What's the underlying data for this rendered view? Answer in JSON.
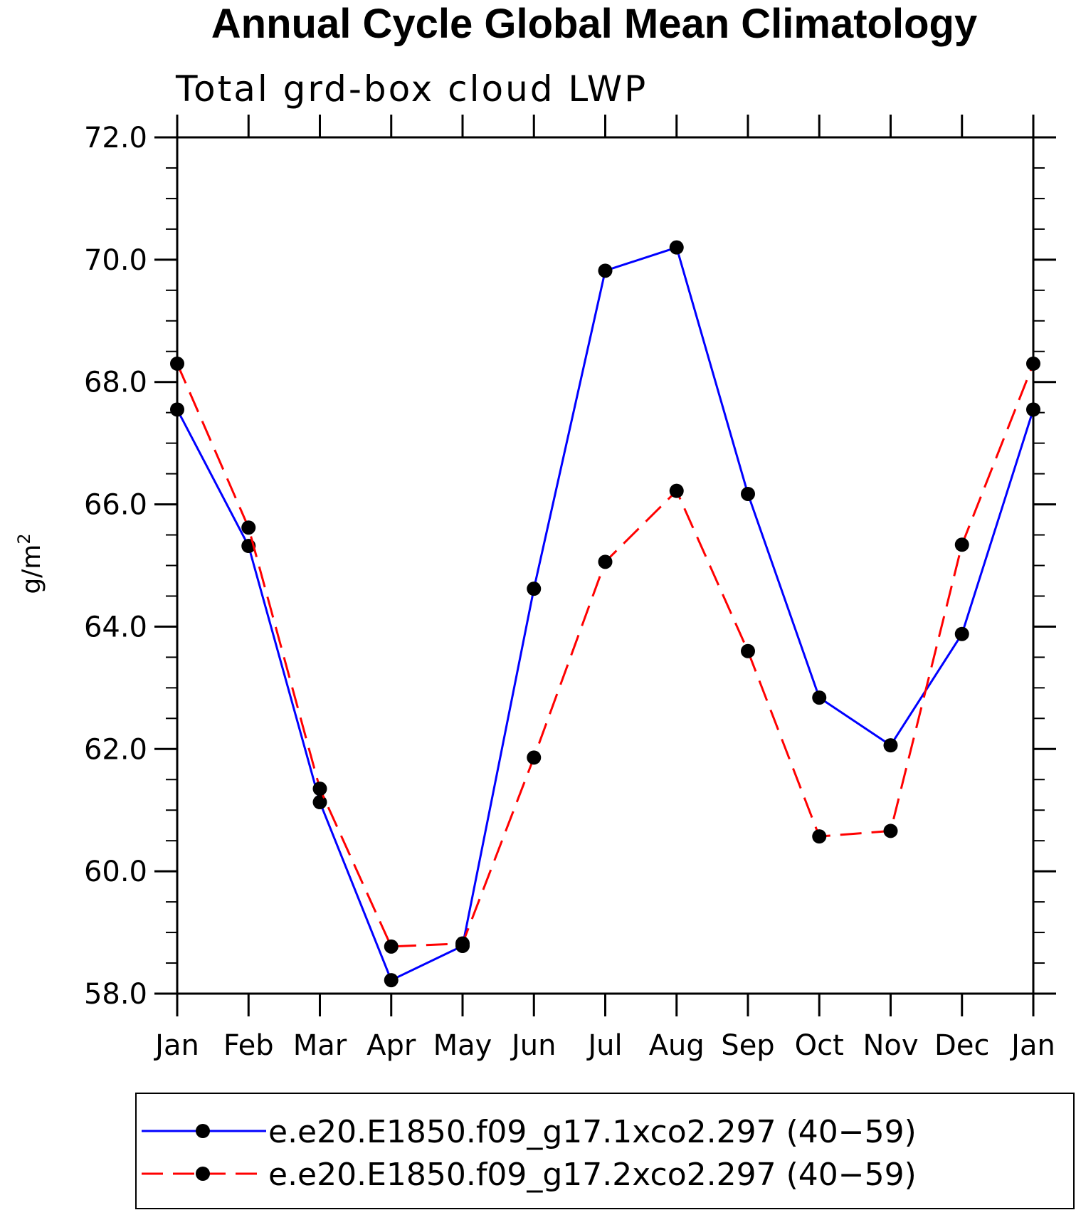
{
  "chart_data": {
    "type": "line",
    "title": "Annual Cycle Global Mean Climatology",
    "subtitle": "Total grd-box cloud LWP",
    "ylabel_base": "g/m",
    "ylabel_sup": "2",
    "xlabel": "",
    "categories": [
      "Jan",
      "Feb",
      "Mar",
      "Apr",
      "May",
      "Jun",
      "Jul",
      "Aug",
      "Sep",
      "Oct",
      "Nov",
      "Dec",
      "Jan"
    ],
    "ylim": [
      58.0,
      72.0
    ],
    "yticks": [
      "58.0",
      "60.0",
      "62.0",
      "64.0",
      "66.0",
      "68.0",
      "70.0",
      "72.0"
    ],
    "grid": false,
    "legend_position": "bottom",
    "series": [
      {
        "name": "e.e20.E1850.f09_g17.1xco2.297 (40−59)",
        "color": "#0000ff",
        "dash": "solid",
        "values": [
          67.55,
          65.32,
          61.13,
          58.22,
          58.78,
          64.62,
          69.82,
          70.2,
          66.17,
          62.84,
          62.06,
          63.88,
          67.55
        ]
      },
      {
        "name": "e.e20.E1850.f09_g17.2xco2.297 (40−59)",
        "color": "#ff0000",
        "dash": "dashed",
        "values": [
          68.3,
          65.62,
          61.35,
          58.77,
          58.82,
          61.86,
          65.06,
          66.22,
          63.6,
          60.57,
          60.66,
          65.34,
          68.3
        ]
      }
    ]
  }
}
